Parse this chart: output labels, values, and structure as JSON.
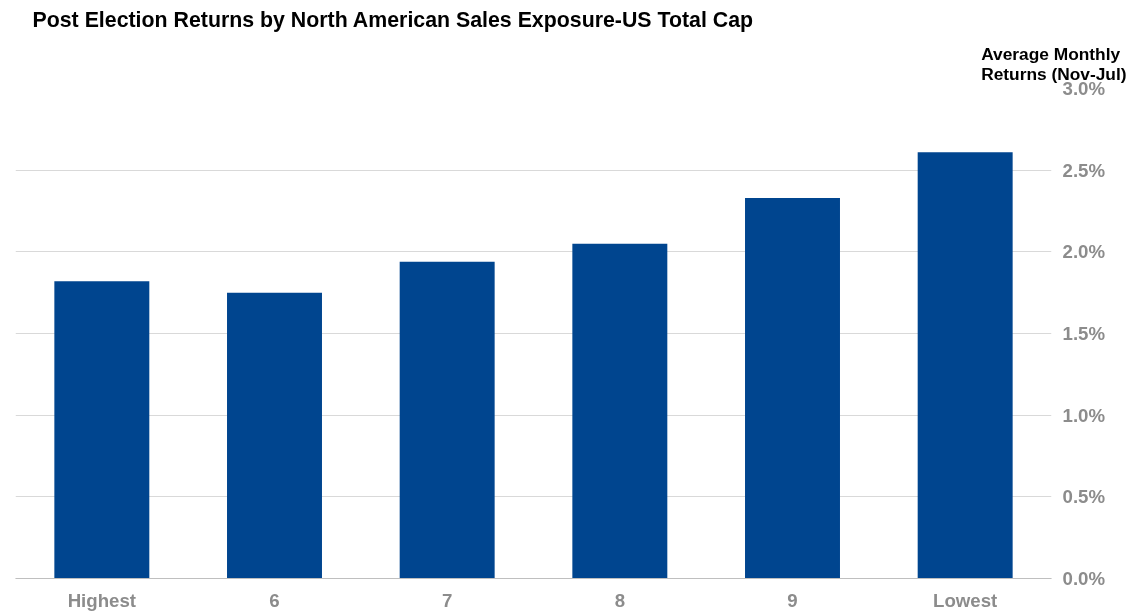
{
  "chart_data": {
    "type": "bar",
    "title": "Post Election Returns by North American  Sales Exposure-US Total Cap",
    "ylabel": "Average Monthly Returns (Nov-Jul)",
    "categories": [
      "Highest",
      "6",
      "7",
      "8",
      "9",
      "Lowest"
    ],
    "values": [
      1.82,
      1.75,
      1.94,
      2.05,
      2.33,
      2.61
    ],
    "color": "#00458f",
    "ylim": [
      0,
      3
    ],
    "yticks": [
      {
        "value": 0,
        "label": "0.0%"
      },
      {
        "value": 0.5,
        "label": "0.5%"
      },
      {
        "value": 1,
        "label": "1.0%"
      },
      {
        "value": 1.5,
        "label": "1.5%"
      },
      {
        "value": 2,
        "label": "2.0%"
      },
      {
        "value": 2.5,
        "label": "2.5%"
      },
      {
        "value": 3,
        "label": "3.0%"
      }
    ],
    "grid": "y"
  }
}
